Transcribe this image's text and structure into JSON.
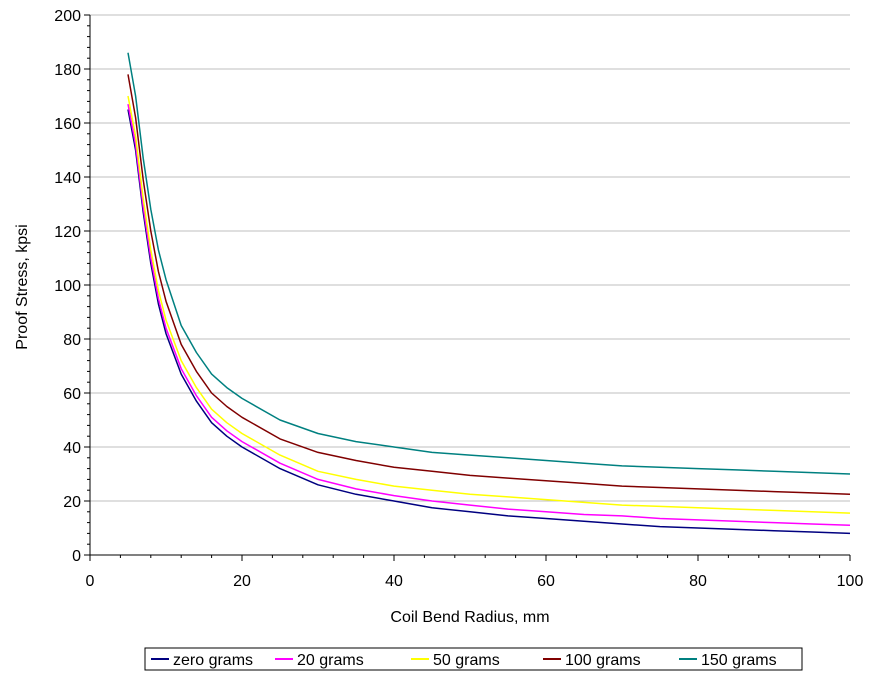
{
  "chart_data": {
    "type": "line",
    "title": "",
    "xlabel": "Coil Bend Radius, mm",
    "ylabel": "Proof Stress, kpsi",
    "xlim": [
      0,
      100
    ],
    "ylim": [
      0,
      200
    ],
    "x_ticks": [
      "0",
      "20",
      "40",
      "60",
      "80",
      "100"
    ],
    "y_ticks": [
      "0",
      "20",
      "40",
      "60",
      "80",
      "100",
      "120",
      "140",
      "160",
      "180",
      "200"
    ],
    "grid": "horizontal major",
    "legend_position": "bottom",
    "x": [
      5,
      6,
      7,
      8,
      9,
      10,
      12,
      14,
      16,
      18,
      20,
      25,
      30,
      35,
      40,
      45,
      50,
      55,
      60,
      65,
      70,
      75,
      80,
      85,
      90,
      95,
      100
    ],
    "series": [
      {
        "name": "zero grams",
        "color": "#000080",
        "values": [
          165,
          150,
          127,
          108,
          93,
          82,
          67,
          57,
          49,
          44,
          40,
          32,
          26,
          22.5,
          20,
          17.5,
          16,
          14.5,
          13.5,
          12.5,
          11.5,
          10.5,
          10,
          9.5,
          9,
          8.5,
          8
        ]
      },
      {
        "name": "20 grams",
        "color": "#FF00FF",
        "values": [
          167,
          152,
          129,
          110,
          95,
          84,
          69,
          59,
          51,
          46,
          42,
          34,
          28,
          24.5,
          22,
          20,
          18.5,
          17,
          16,
          15,
          14.5,
          13.5,
          13,
          12.5,
          12,
          11.5,
          11
        ]
      },
      {
        "name": "50 grams",
        "color": "#FFFF00",
        "values": [
          170,
          155,
          132,
          113,
          98,
          87,
          72,
          62,
          54,
          49,
          45,
          37,
          31,
          28,
          25.5,
          24,
          22.5,
          21.5,
          20.5,
          19.5,
          18.5,
          18,
          17.5,
          17,
          16.5,
          16,
          15.5
        ]
      },
      {
        "name": "100 grams",
        "color": "#800000",
        "values": [
          178,
          162,
          139,
          120,
          105,
          94,
          78,
          68,
          60,
          55,
          51,
          43,
          38,
          35,
          32.5,
          31,
          29.5,
          28.5,
          27.5,
          26.5,
          25.5,
          25,
          24.5,
          24,
          23.5,
          23,
          22.5
        ]
      },
      {
        "name": "150 grams",
        "color": "#008080",
        "values": [
          186,
          170,
          147,
          128,
          113,
          102,
          85,
          75,
          67,
          62,
          58,
          50,
          45,
          42,
          40,
          38,
          37,
          36,
          35,
          34,
          33,
          32.5,
          32,
          31.5,
          31,
          30.5,
          30
        ]
      }
    ]
  }
}
